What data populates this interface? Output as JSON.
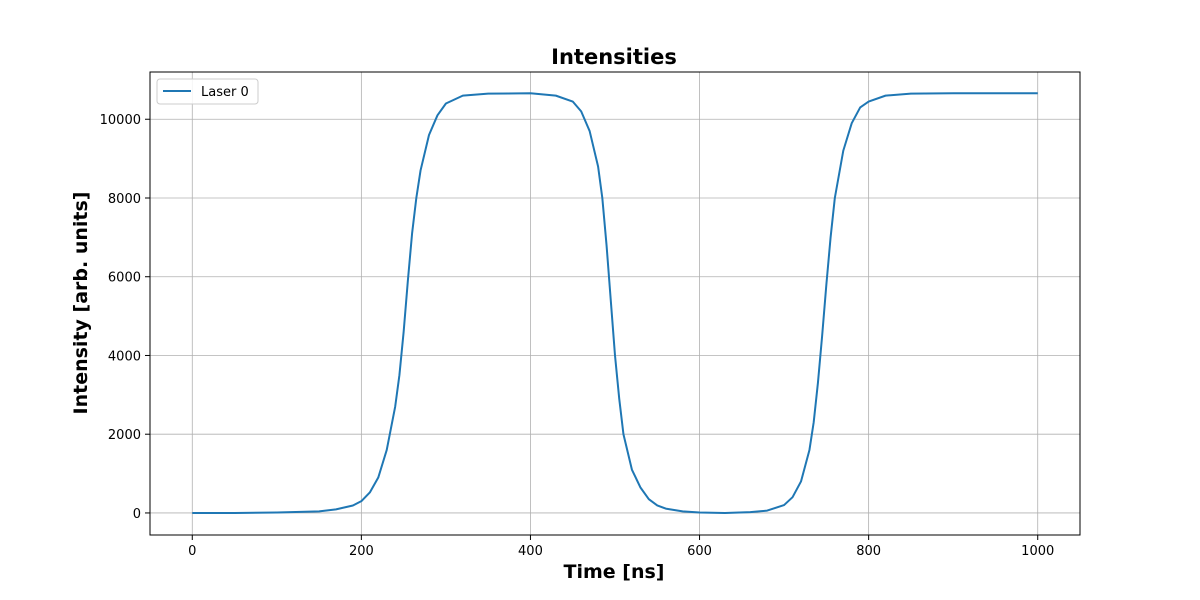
{
  "chart_data": {
    "type": "line",
    "title": "Intensities",
    "xlabel": "Time [ns]",
    "ylabel": "Intensity [arb. units]",
    "xlim": [
      -50,
      1050
    ],
    "ylim": [
      -560,
      11200
    ],
    "xticks": [
      0,
      200,
      400,
      600,
      800,
      1000
    ],
    "yticks": [
      0,
      2000,
      4000,
      6000,
      8000,
      10000
    ],
    "grid": true,
    "legend_position": "top-left",
    "series": [
      {
        "name": "Laser 0",
        "color": "#1f77b4",
        "x": [
          0,
          50,
          100,
          150,
          170,
          190,
          200,
          210,
          220,
          230,
          240,
          245,
          250,
          255,
          260,
          265,
          270,
          280,
          290,
          300,
          320,
          350,
          400,
          430,
          450,
          460,
          470,
          480,
          485,
          490,
          495,
          500,
          505,
          510,
          520,
          530,
          540,
          550,
          560,
          580,
          600,
          630,
          660,
          680,
          700,
          710,
          720,
          730,
          735,
          740,
          745,
          750,
          755,
          760,
          770,
          780,
          790,
          800,
          820,
          850,
          900,
          1000
        ],
        "y": [
          0,
          0,
          10,
          40,
          90,
          190,
          300,
          520,
          900,
          1600,
          2700,
          3500,
          4600,
          5900,
          7100,
          8000,
          8700,
          9600,
          10100,
          10400,
          10600,
          10650,
          10660,
          10600,
          10450,
          10200,
          9700,
          8800,
          8000,
          6800,
          5400,
          4000,
          2900,
          2000,
          1100,
          650,
          350,
          190,
          110,
          40,
          10,
          0,
          20,
          60,
          200,
          400,
          800,
          1600,
          2300,
          3300,
          4500,
          5800,
          7000,
          8000,
          9200,
          9900,
          10300,
          10450,
          10600,
          10650,
          10660,
          10660
        ]
      }
    ]
  }
}
